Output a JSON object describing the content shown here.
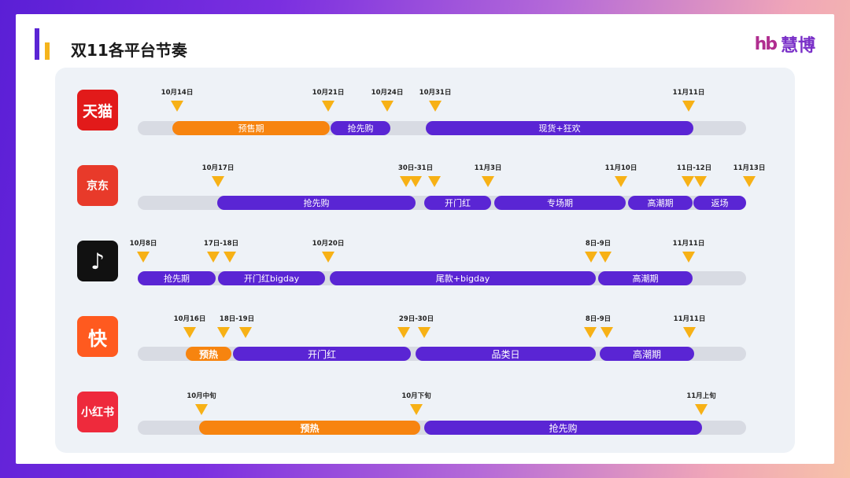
{
  "title": "双11各平台节奏",
  "brand": {
    "logo": "hb",
    "name": "慧博"
  },
  "colors": {
    "purple": "#5a25d4",
    "orange": "#f7840f",
    "marker": "#f7b116",
    "track": "#d8dbe3"
  },
  "platforms": [
    {
      "name": "tmall",
      "icon_text": "天猫",
      "icon_bg": "#e21a1a",
      "markers": [
        "10月14日",
        "10月21日",
        "10月24日",
        "10月31日",
        "11月11日"
      ],
      "segments": [
        {
          "label": "预售期",
          "color": "orange"
        },
        {
          "label": "抢先购",
          "color": "purple"
        },
        {
          "label": "现货+狂欢",
          "color": "purple"
        }
      ]
    },
    {
      "name": "jd",
      "icon_text": "京东",
      "icon_bg": "#e83a2a",
      "markers": [
        "10月17日",
        "30日-31日",
        "11月3日",
        "11月10日",
        "11日-12日",
        "11月13日"
      ],
      "segments": [
        {
          "label": "抢先购",
          "color": "purple"
        },
        {
          "label": "开门红",
          "color": "purple"
        },
        {
          "label": "专场期",
          "color": "purple"
        },
        {
          "label": "高潮期",
          "color": "purple"
        },
        {
          "label": "返场",
          "color": "purple"
        }
      ]
    },
    {
      "name": "douyin",
      "icon_text": "♪",
      "icon_bg": "#111111",
      "markers": [
        "10月8日",
        "17日-18日",
        "10月20日",
        "8日-9日",
        "11月11日"
      ],
      "segments": [
        {
          "label": "抢先期",
          "color": "purple"
        },
        {
          "label": "开门红bigday",
          "color": "purple"
        },
        {
          "label": "尾款+bigday",
          "color": "purple"
        },
        {
          "label": "高潮期",
          "color": "purple"
        }
      ]
    },
    {
      "name": "kuaishou",
      "icon_text": "快",
      "icon_bg": "#ff5a1f",
      "markers": [
        "10月16日",
        "18日-19日",
        "29日-30日",
        "8日-9日",
        "11月11日"
      ],
      "segments": [
        {
          "label": "预热",
          "color": "orange"
        },
        {
          "label": "开门红",
          "color": "purple"
        },
        {
          "label": "品类日",
          "color": "purple"
        },
        {
          "label": "高潮期",
          "color": "purple"
        }
      ]
    },
    {
      "name": "xiaohongshu",
      "icon_text": "小红书",
      "icon_bg": "#ee2a3c",
      "markers": [
        "10月中旬",
        "10月下旬",
        "11月上旬"
      ],
      "segments": [
        {
          "label": "预热",
          "color": "orange"
        },
        {
          "label": "抢先购",
          "color": "purple"
        }
      ]
    }
  ]
}
